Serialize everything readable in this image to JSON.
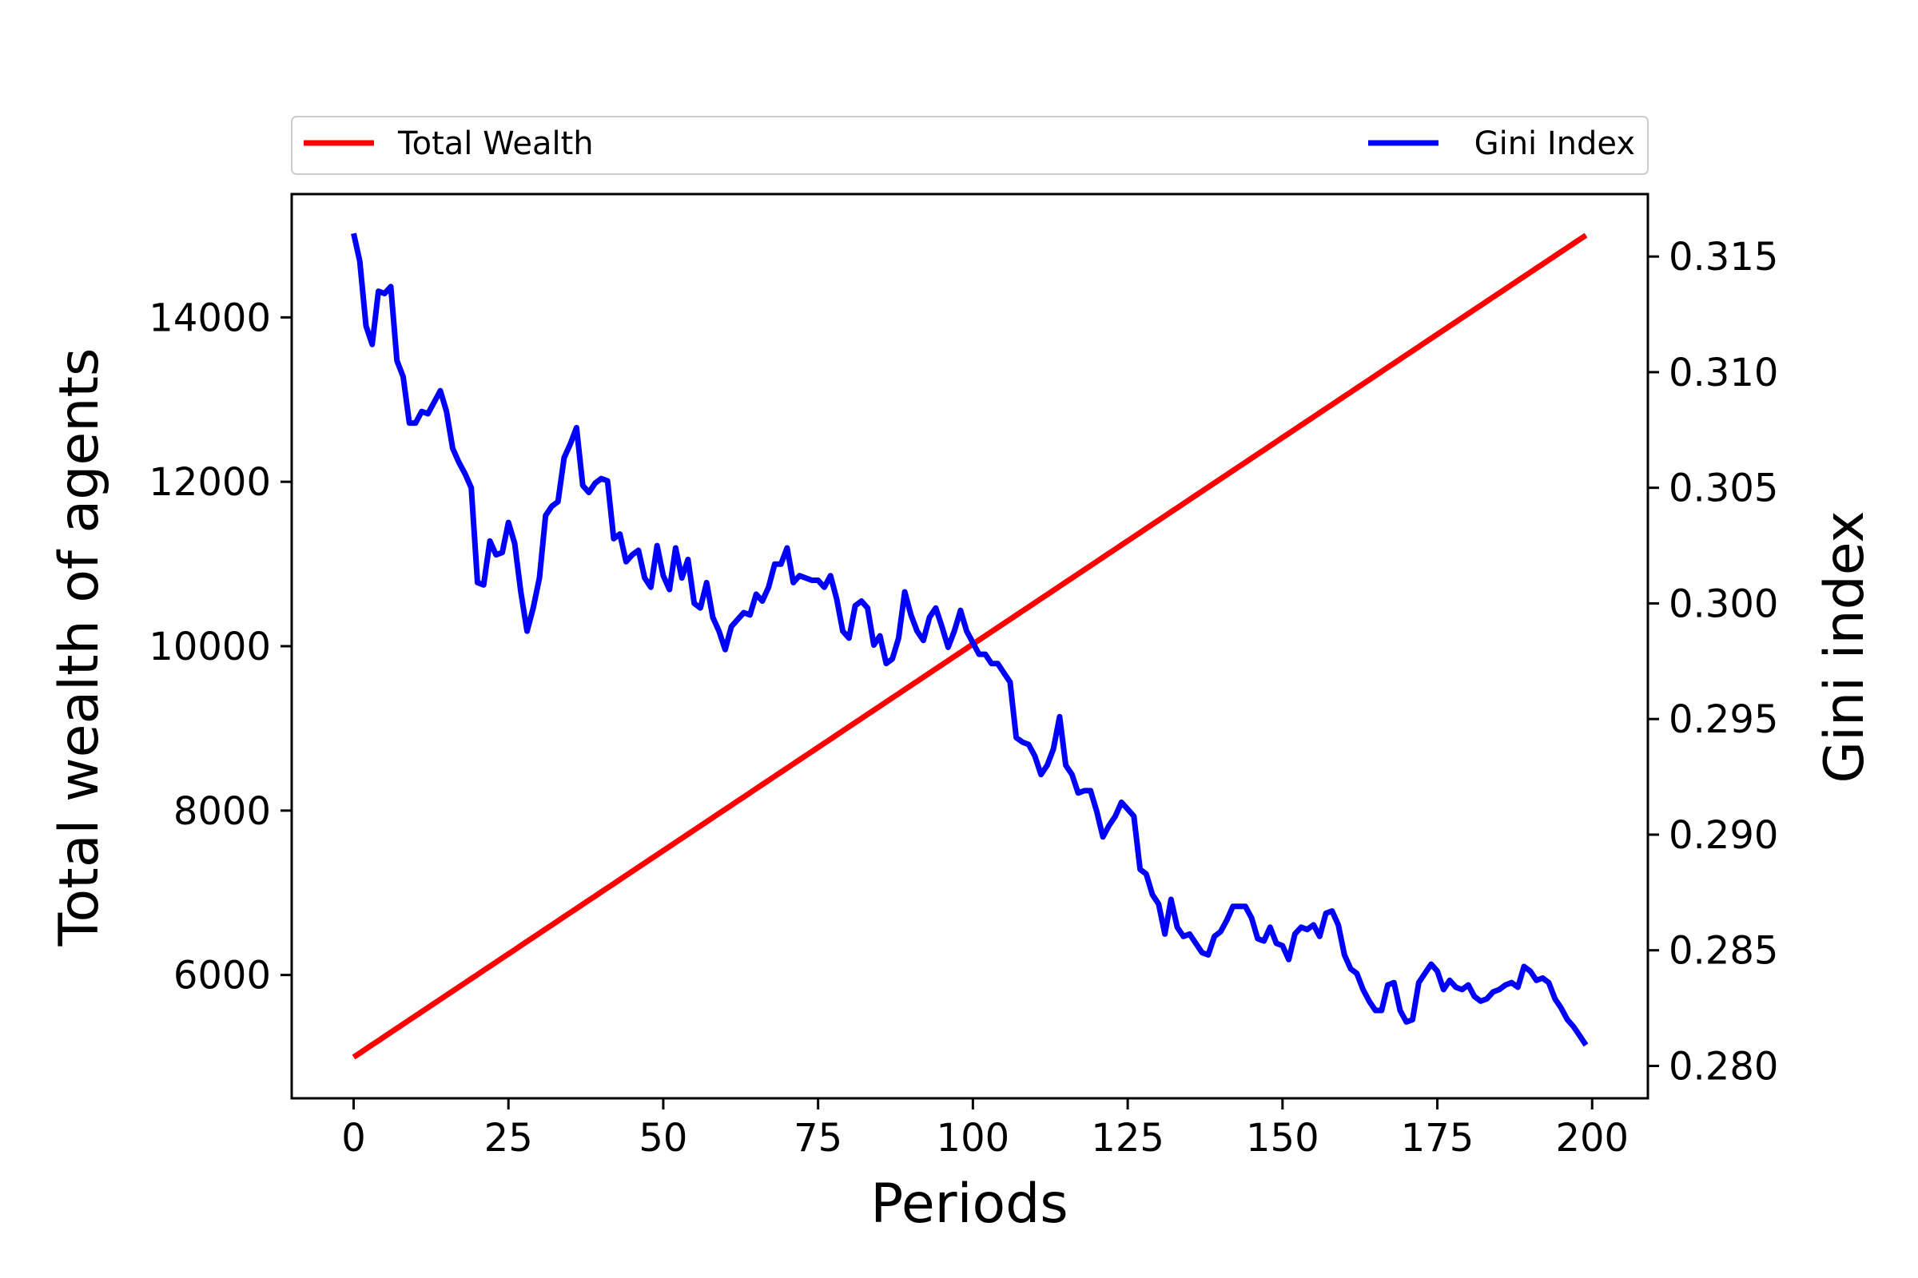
{
  "chart_data": {
    "type": "line",
    "xlabel": "Periods",
    "ylabel_left": "Total wealth of agents",
    "ylabel_right": "Gini index",
    "xlim": [
      -10,
      209
    ],
    "ylim_left": [
      4500,
      15500
    ],
    "ylim_right": [
      0.2786,
      0.3177
    ],
    "x_ticks": [
      0,
      25,
      50,
      75,
      100,
      125,
      150,
      175,
      200
    ],
    "y_left_ticks": [
      6000,
      8000,
      10000,
      12000,
      14000
    ],
    "y_right_ticks": [
      0.28,
      0.285,
      0.29,
      0.295,
      0.3,
      0.305,
      0.31,
      0.315
    ],
    "x_tick_labels": [
      "0",
      "25",
      "50",
      "75",
      "100",
      "125",
      "150",
      "175",
      "200"
    ],
    "y_left_tick_labels": [
      "6000",
      "8000",
      "10000",
      "12000",
      "14000"
    ],
    "y_right_tick_labels": [
      "0.280",
      "0.285",
      "0.290",
      "0.295",
      "0.300",
      "0.305",
      "0.310",
      "0.315"
    ],
    "legend": {
      "left_label": "Total Wealth",
      "right_label": "Gini Index",
      "placement": "top, above plot"
    },
    "grid": false,
    "series": [
      {
        "name": "Total Wealth",
        "axis": "left",
        "color": "#ff0000",
        "x_start": 0,
        "x_end": 199,
        "y_start": 5000,
        "y_end": 15000
      },
      {
        "name": "Gini Index",
        "axis": "right",
        "color": "#0000ff",
        "x": [
          0,
          1,
          2,
          3,
          4,
          5,
          6,
          7,
          8,
          9,
          10,
          11,
          12,
          13,
          14,
          15,
          16,
          17,
          18,
          19,
          20,
          21,
          22,
          23,
          24,
          25,
          26,
          27,
          28,
          29,
          30,
          31,
          32,
          33,
          34,
          35,
          36,
          37,
          38,
          39,
          40,
          41,
          42,
          43,
          44,
          45,
          46,
          47,
          48,
          49,
          50,
          51,
          52,
          53,
          54,
          55,
          56,
          57,
          58,
          59,
          60,
          61,
          62,
          63,
          64,
          65,
          66,
          67,
          68,
          69,
          70,
          71,
          72,
          73,
          74,
          75,
          76,
          77,
          78,
          79,
          80,
          81,
          82,
          83,
          84,
          85,
          86,
          87,
          88,
          89,
          90,
          91,
          92,
          93,
          94,
          95,
          96,
          97,
          98,
          99,
          100,
          101,
          102,
          103,
          104,
          105,
          106,
          107,
          108,
          109,
          110,
          111,
          112,
          113,
          114,
          115,
          116,
          117,
          118,
          119,
          120,
          121,
          122,
          123,
          124,
          125,
          126,
          127,
          128,
          129,
          130,
          131,
          132,
          133,
          134,
          135,
          136,
          137,
          138,
          139,
          140,
          141,
          142,
          143,
          144,
          145,
          146,
          147,
          148,
          149,
          150,
          151,
          152,
          153,
          154,
          155,
          156,
          157,
          158,
          159,
          160,
          161,
          162,
          163,
          164,
          165,
          166,
          167,
          168,
          169,
          170,
          171,
          172,
          173,
          174,
          175,
          176,
          177,
          178,
          179,
          180,
          181,
          182,
          183,
          184,
          185,
          186,
          187,
          188,
          189,
          190,
          191,
          192,
          193,
          194,
          195,
          196,
          197,
          198,
          199
        ],
        "values": [
          0.316,
          0.3148,
          0.312,
          0.3112,
          0.3135,
          0.3134,
          0.3137,
          0.3105,
          0.3098,
          0.3078,
          0.3078,
          0.3083,
          0.3082,
          0.3087,
          0.3092,
          0.3083,
          0.3067,
          0.3061,
          0.3056,
          0.305,
          0.3009,
          0.3008,
          0.3027,
          0.3021,
          0.3022,
          0.3035,
          0.3026,
          0.3005,
          0.2988,
          0.2998,
          0.3011,
          0.3038,
          0.3042,
          0.3044,
          0.3063,
          0.3069,
          0.3076,
          0.3051,
          0.3048,
          0.3052,
          0.3054,
          0.3053,
          0.3028,
          0.303,
          0.3018,
          0.3021,
          0.3023,
          0.3011,
          0.3007,
          0.3025,
          0.3012,
          0.3006,
          0.3024,
          0.3011,
          0.3019,
          0.3,
          0.2998,
          0.3009,
          0.2994,
          0.2988,
          0.298,
          0.299,
          0.2993,
          0.2996,
          0.2995,
          0.3004,
          0.3001,
          0.3007,
          0.3017,
          0.3017,
          0.3024,
          0.3009,
          0.3012,
          0.3011,
          0.301,
          0.301,
          0.3007,
          0.3012,
          0.3002,
          0.2988,
          0.2985,
          0.2999,
          0.3001,
          0.2998,
          0.2982,
          0.2986,
          0.2974,
          0.2976,
          0.2985,
          0.3005,
          0.2995,
          0.2988,
          0.2984,
          0.2994,
          0.2998,
          0.299,
          0.2981,
          0.2988,
          0.2997,
          0.2988,
          0.2983,
          0.2978,
          0.2978,
          0.2974,
          0.2974,
          0.297,
          0.2966,
          0.2942,
          0.294,
          0.2939,
          0.2934,
          0.2926,
          0.293,
          0.2937,
          0.2951,
          0.293,
          0.2926,
          0.2918,
          0.2919,
          0.2919,
          0.291,
          0.2899,
          0.2904,
          0.2908,
          0.2914,
          0.2911,
          0.2908,
          0.2885,
          0.2883,
          0.2874,
          0.287,
          0.2857,
          0.2872,
          0.286,
          0.2856,
          0.2857,
          0.2853,
          0.2849,
          0.2848,
          0.2856,
          0.2858,
          0.2863,
          0.2869,
          0.2869,
          0.2869,
          0.2864,
          0.2855,
          0.2854,
          0.286,
          0.2853,
          0.2852,
          0.2846,
          0.2857,
          0.286,
          0.2859,
          0.2861,
          0.2856,
          0.2866,
          0.2867,
          0.2861,
          0.2848,
          0.2842,
          0.284,
          0.2833,
          0.2828,
          0.2824,
          0.2824,
          0.2835,
          0.2836,
          0.2824,
          0.2819,
          0.282,
          0.2836,
          0.284,
          0.2844,
          0.2841,
          0.2833,
          0.2837,
          0.2834,
          0.2833,
          0.2835,
          0.283,
          0.2828,
          0.2829,
          0.2832,
          0.2833,
          0.2835,
          0.2836,
          0.2834,
          0.2843,
          0.2841,
          0.2837,
          0.2838,
          0.2836,
          0.2829,
          0.2825,
          0.282,
          0.2817,
          0.2813,
          0.2809
        ]
      }
    ]
  }
}
